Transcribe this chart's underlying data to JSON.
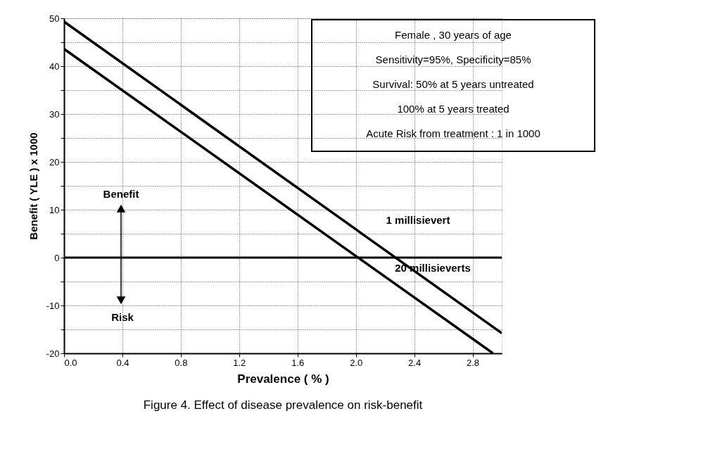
{
  "chart_data": {
    "type": "line",
    "xlabel": "Prevalence ( % )",
    "ylabel": "Benefit ( YLE ) x 1000",
    "series": [
      {
        "color": "#000000",
        "x": [
          0,
          3.0
        ],
        "values": [
          49.3,
          -15.8
        ]
      },
      {
        "color": "#000000",
        "x": [
          0,
          2.94
        ],
        "values": [
          43.6,
          -20
        ]
      }
    ],
    "xlim": [
      0,
      3.0
    ],
    "ylim": [
      -20,
      50
    ],
    "xticks": [
      {
        "value": 0,
        "label": "0.0"
      },
      0.4,
      0.8,
      1.2,
      1.6,
      {
        "value": 2,
        "label": "2.0"
      },
      2.4,
      2.8
    ],
    "yticks": [
      -20,
      {
        "value": -15,
        "label": null
      },
      -10,
      {
        "value": -5,
        "label": null
      },
      0,
      {
        "value": 5,
        "label": null
      },
      10,
      {
        "value": 15,
        "label": null
      },
      20,
      {
        "value": 25,
        "label": null
      },
      30,
      {
        "value": 35,
        "label": null
      },
      40,
      {
        "value": 45,
        "label": null
      },
      50
    ],
    "grid": true,
    "marker": "none",
    "line_style": "solid",
    "ref_lines": [
      {
        "axis": "y",
        "value": 0,
        "label": null
      }
    ],
    "annotations": [
      "Benefit",
      "Risk",
      "1 millisievert",
      "20 millisieverts",
      "Female , 30 years of age",
      "Sensitivity=95%, Specificity=85%",
      "Survival:  50% at 5 years untreated",
      "100% at 5 years treated",
      "Acute Risk from treatment : 1 in 1000",
      "Figure 4. Effect of disease prevalence on risk-benefit"
    ]
  }
}
